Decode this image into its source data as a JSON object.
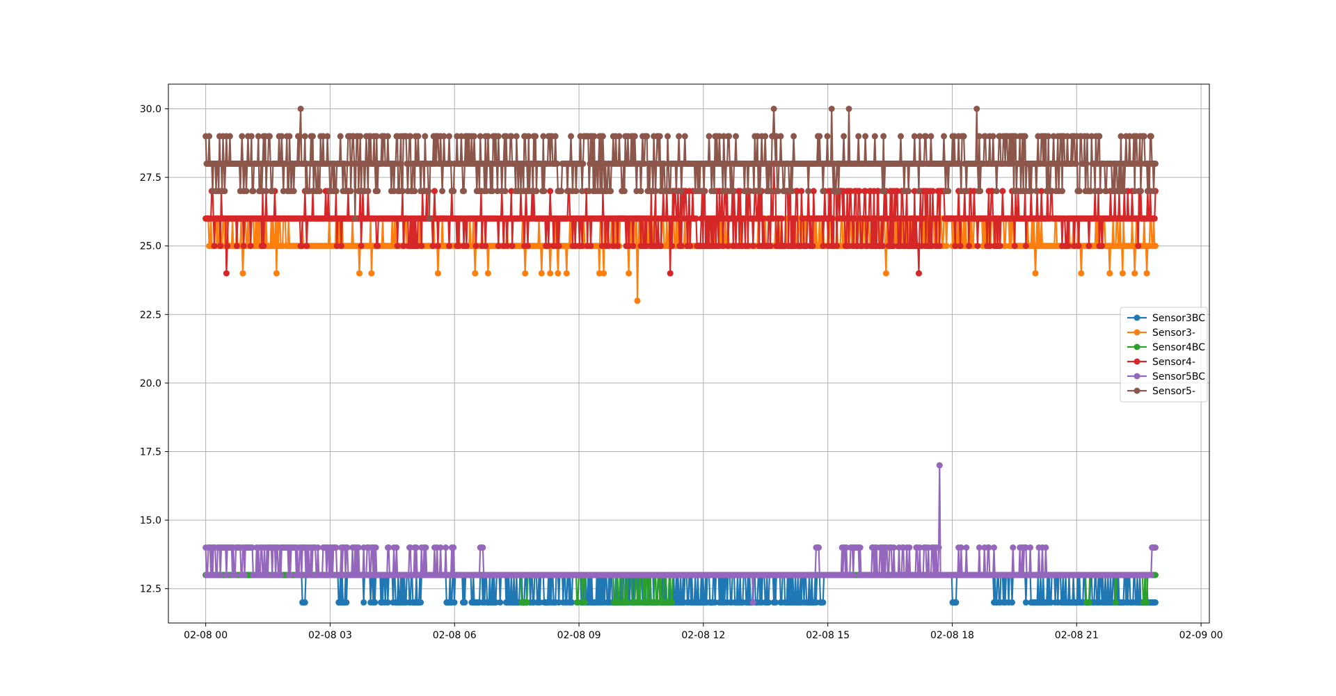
{
  "chart_data": {
    "type": "line",
    "title": "",
    "xlabel": "",
    "ylabel": "",
    "x_range": [
      "02-08 00:00",
      "02-09 00:00"
    ],
    "xlim_hours": [
      -0.9,
      24.2
    ],
    "ylim": [
      11.25,
      30.9
    ],
    "grid": true,
    "legend_position": "center-right",
    "x_ticks": [
      {
        "hour": 0,
        "label": "02-08 00"
      },
      {
        "hour": 3,
        "label": "02-08 03"
      },
      {
        "hour": 6,
        "label": "02-08 06"
      },
      {
        "hour": 9,
        "label": "02-08 09"
      },
      {
        "hour": 12,
        "label": "02-08 12"
      },
      {
        "hour": 15,
        "label": "02-08 15"
      },
      {
        "hour": 18,
        "label": "02-08 18"
      },
      {
        "hour": 21,
        "label": "02-08 21"
      },
      {
        "hour": 24,
        "label": "02-09 00"
      }
    ],
    "y_ticks": [
      {
        "value": 12.5,
        "label": "12.5"
      },
      {
        "value": 15.0,
        "label": "15.0"
      },
      {
        "value": 17.5,
        "label": "17.5"
      },
      {
        "value": 20.0,
        "label": "20.0"
      },
      {
        "value": 22.5,
        "label": "22.5"
      },
      {
        "value": 25.0,
        "label": "25.0"
      },
      {
        "value": 27.5,
        "label": "27.5"
      },
      {
        "value": 30.0,
        "label": "30.0"
      }
    ],
    "x_extent_hours": [
      0,
      22.9
    ],
    "series": [
      {
        "name": "Sensor3BC",
        "color": "#1f77b4",
        "base_value": 13,
        "alt_values": [
          12
        ],
        "outliers": [],
        "segments": [
          {
            "start": 2.3,
            "end": 2.4,
            "density": 0.8
          },
          {
            "start": 3.2,
            "end": 3.4,
            "density": 0.6
          },
          {
            "start": 3.8,
            "end": 4.4,
            "density": 0.3
          },
          {
            "start": 4.5,
            "end": 5.2,
            "density": 0.6
          },
          {
            "start": 5.8,
            "end": 6.0,
            "density": 0.7
          },
          {
            "start": 6.2,
            "end": 9.0,
            "density": 0.45
          },
          {
            "start": 9.0,
            "end": 14.9,
            "density": 0.5
          },
          {
            "start": 18.0,
            "end": 18.1,
            "density": 0.9
          },
          {
            "start": 19.0,
            "end": 19.5,
            "density": 0.5
          },
          {
            "start": 19.7,
            "end": 22.9,
            "density": 0.6
          }
        ]
      },
      {
        "name": "Sensor3-",
        "color": "#ff7f0e",
        "base_value": 25,
        "alt_values": [
          26
        ],
        "outliers": [
          {
            "hour": 0.9,
            "value": 24
          },
          {
            "hour": 1.7,
            "value": 24
          },
          {
            "hour": 3.7,
            "value": 24
          },
          {
            "hour": 4.0,
            "value": 24
          },
          {
            "hour": 5.6,
            "value": 24
          },
          {
            "hour": 6.5,
            "value": 24
          },
          {
            "hour": 6.8,
            "value": 24
          },
          {
            "hour": 7.7,
            "value": 24
          },
          {
            "hour": 8.1,
            "value": 24
          },
          {
            "hour": 8.3,
            "value": 24
          },
          {
            "hour": 8.5,
            "value": 24
          },
          {
            "hour": 8.7,
            "value": 24
          },
          {
            "hour": 9.5,
            "value": 24
          },
          {
            "hour": 9.6,
            "value": 24
          },
          {
            "hour": 10.2,
            "value": 24
          },
          {
            "hour": 10.4,
            "value": 23
          },
          {
            "hour": 16.4,
            "value": 24
          },
          {
            "hour": 20.0,
            "value": 24
          },
          {
            "hour": 21.1,
            "value": 24
          },
          {
            "hour": 21.8,
            "value": 24
          },
          {
            "hour": 22.1,
            "value": 24
          },
          {
            "hour": 22.4,
            "value": 24
          },
          {
            "hour": 22.7,
            "value": 24
          }
        ],
        "segments": [
          {
            "start": 0.0,
            "end": 2.0,
            "density": 0.35
          },
          {
            "start": 2.0,
            "end": 9.5,
            "density": 0.08
          },
          {
            "start": 9.5,
            "end": 11.5,
            "density": 0.45
          },
          {
            "start": 11.5,
            "end": 14.2,
            "density": 0.15
          },
          {
            "start": 14.2,
            "end": 19.5,
            "density": 0.55
          },
          {
            "start": 19.5,
            "end": 22.9,
            "density": 0.2
          }
        ]
      },
      {
        "name": "Sensor4BC",
        "color": "#2ca02c",
        "base_value": 13,
        "alt_values": [
          12
        ],
        "outliers": [],
        "segments": [
          {
            "start": 7.6,
            "end": 7.8,
            "density": 0.5
          },
          {
            "start": 8.9,
            "end": 9.2,
            "density": 0.5
          },
          {
            "start": 9.8,
            "end": 11.3,
            "density": 0.55
          },
          {
            "start": 21.2,
            "end": 21.3,
            "density": 0.6
          },
          {
            "start": 21.9,
            "end": 22.0,
            "density": 0.6
          },
          {
            "start": 22.6,
            "end": 22.7,
            "density": 0.6
          }
        ]
      },
      {
        "name": "Sensor4-",
        "color": "#d62728",
        "base_value": 26,
        "alt_values": [
          25,
          27
        ],
        "outliers": [
          {
            "hour": 0.5,
            "value": 24
          },
          {
            "hour": 11.2,
            "value": 24
          },
          {
            "hour": 17.2,
            "value": 24
          },
          {
            "hour": 13.7,
            "value": 28
          }
        ],
        "segments": [
          {
            "start": 0.0,
            "end": 2.5,
            "density": 0.2
          },
          {
            "start": 2.5,
            "end": 6.5,
            "density": 0.15
          },
          {
            "start": 6.5,
            "end": 10.5,
            "density": 0.2
          },
          {
            "start": 10.5,
            "end": 13.5,
            "density": 0.55
          },
          {
            "start": 13.5,
            "end": 14.5,
            "density": 0.7
          },
          {
            "start": 14.5,
            "end": 15.0,
            "density": 0.3
          },
          {
            "start": 15.0,
            "end": 17.8,
            "density": 0.75
          },
          {
            "start": 17.8,
            "end": 22.9,
            "density": 0.25
          }
        ]
      },
      {
        "name": "Sensor5BC",
        "color": "#9467bd",
        "base_value": 13,
        "alt_values": [
          14
        ],
        "outliers": [
          {
            "hour": 17.7,
            "value": 17
          },
          {
            "hour": 13.2,
            "value": 12
          }
        ],
        "segments": [
          {
            "start": 0.0,
            "end": 2.5,
            "density": 0.65
          },
          {
            "start": 2.5,
            "end": 4.5,
            "density": 0.4
          },
          {
            "start": 4.5,
            "end": 6.0,
            "density": 0.15
          },
          {
            "start": 6.6,
            "end": 6.7,
            "density": 0.9
          },
          {
            "start": 14.7,
            "end": 14.8,
            "density": 0.9
          },
          {
            "start": 15.2,
            "end": 15.8,
            "density": 0.6
          },
          {
            "start": 16.0,
            "end": 17.7,
            "density": 0.5
          },
          {
            "start": 17.9,
            "end": 20.3,
            "density": 0.12
          },
          {
            "start": 22.8,
            "end": 22.9,
            "density": 0.9
          }
        ]
      },
      {
        "name": "Sensor5-",
        "color": "#8c564b",
        "base_value": 28,
        "alt_values": [
          27,
          29
        ],
        "outliers": [
          {
            "hour": 2.3,
            "value": 30
          },
          {
            "hour": 13.7,
            "value": 30
          },
          {
            "hour": 15.1,
            "value": 30
          },
          {
            "hour": 15.5,
            "value": 30
          },
          {
            "hour": 18.6,
            "value": 30
          },
          {
            "hour": 3.6,
            "value": 26
          },
          {
            "hour": 5.4,
            "value": 26
          }
        ],
        "segments": [
          {
            "start": 0.0,
            "end": 11.0,
            "density": 0.45
          },
          {
            "start": 11.0,
            "end": 14.3,
            "density": 0.35
          },
          {
            "start": 14.3,
            "end": 18.0,
            "density": 0.15
          },
          {
            "start": 18.0,
            "end": 22.9,
            "density": 0.4
          }
        ]
      }
    ]
  }
}
